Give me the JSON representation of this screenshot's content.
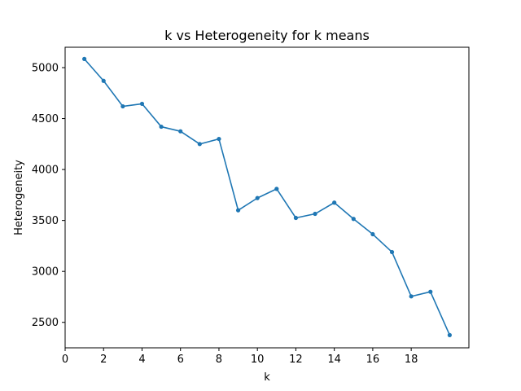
{
  "chart_data": {
    "type": "line",
    "title": "k vs Heterogeneity for k means",
    "xlabel": "k",
    "ylabel": "Heterogeneity",
    "x": [
      1,
      2,
      3,
      4,
      5,
      6,
      7,
      8,
      9,
      10,
      11,
      12,
      13,
      14,
      15,
      16,
      17,
      18,
      19,
      20
    ],
    "series": [
      {
        "values": [
          5085,
          4870,
          4620,
          4645,
          4420,
          4375,
          4250,
          4300,
          3600,
          3720,
          3810,
          3525,
          3565,
          3675,
          3515,
          3365,
          3190,
          2755,
          2800,
          2375
        ]
      }
    ],
    "xlim": [
      0,
      21
    ],
    "ylim": [
      2250,
      5200
    ],
    "xticks": [
      "0",
      "2",
      "4",
      "6",
      "8",
      "10",
      "12",
      "14",
      "16",
      "18"
    ],
    "yticks": [
      "2500",
      "3000",
      "3500",
      "4000",
      "4500",
      "5000"
    ],
    "grid": false,
    "line_color": "#1f77b4",
    "marker": "circle"
  }
}
